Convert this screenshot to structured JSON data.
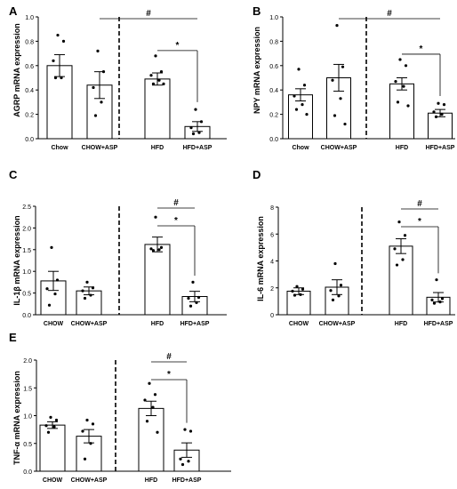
{
  "chart_data": [
    {
      "type": "bar",
      "panel": "A",
      "ylabel": "AGRP mRNA expression",
      "categories": [
        "Chow",
        "CHOW+ASP",
        "HFD",
        "HFD+ASP"
      ],
      "values": [
        0.6,
        0.44,
        0.49,
        0.1
      ],
      "errors": [
        0.09,
        0.11,
        0.05,
        0.04
      ],
      "points": [
        [
          0.85,
          0.8,
          0.64,
          0.5,
          0.5
        ],
        [
          0.72,
          0.55,
          0.42,
          0.3,
          0.19
        ],
        [
          0.68,
          0.55,
          0.52,
          0.48,
          0.45,
          0.45
        ],
        [
          0.24,
          0.14,
          0.09,
          0.05,
          0.04
        ]
      ],
      "ylim": [
        0,
        1.0
      ],
      "yticks": [
        "0.0",
        "0.2",
        "0.4",
        "0.6",
        "0.8",
        "1.0"
      ],
      "significance": [
        {
          "label": "#",
          "from": 1,
          "to": 3
        },
        {
          "label": "*",
          "from": 2,
          "to": 3
        }
      ]
    },
    {
      "type": "bar",
      "panel": "B",
      "ylabel": "NPY mRNA expression",
      "categories": [
        "Chow",
        "CHOW+ASP",
        "HFD",
        "HFD+ASP"
      ],
      "values": [
        0.36,
        0.5,
        0.45,
        0.21
      ],
      "errors": [
        0.05,
        0.11,
        0.05,
        0.03
      ],
      "points": [
        [
          0.57,
          0.44,
          0.35,
          0.28,
          0.24,
          0.2
        ],
        [
          0.93,
          0.59,
          0.48,
          0.33,
          0.19,
          0.12
        ],
        [
          0.65,
          0.6,
          0.47,
          0.43,
          0.3,
          0.27
        ],
        [
          0.29,
          0.28,
          0.22,
          0.2,
          0.18
        ]
      ],
      "ylim": [
        0,
        1.0
      ],
      "yticks": [
        "0.0",
        "0.2",
        "0.4",
        "0.6",
        "0.8",
        "1.0"
      ],
      "significance": [
        {
          "label": "#",
          "from": 1,
          "to": 3
        },
        {
          "label": "*",
          "from": 2,
          "to": 3
        }
      ]
    },
    {
      "type": "bar",
      "panel": "C",
      "ylabel": "IL-1β mRNA expression",
      "categories": [
        "CHOW",
        "CHOW+ASP",
        "HFD",
        "HFD+ASP"
      ],
      "values": [
        0.78,
        0.55,
        1.62,
        0.42
      ],
      "errors": [
        0.22,
        0.09,
        0.17,
        0.12
      ],
      "points": [
        [
          1.55,
          0.8,
          0.6,
          0.48,
          0.22
        ],
        [
          0.75,
          0.62,
          0.55,
          0.45,
          0.38
        ],
        [
          2.25,
          1.55,
          1.52,
          1.5,
          1.48
        ],
        [
          0.75,
          0.4,
          0.38,
          0.28,
          0.2
        ]
      ],
      "ylim": [
        0,
        2.5
      ],
      "yticks": [
        "0.0",
        "0.5",
        "1.0",
        "1.5",
        "2.0",
        "2.5"
      ],
      "significance": [
        {
          "label": "#",
          "from": 2,
          "to": 3
        },
        {
          "label": "*",
          "from": 2,
          "to": 3
        }
      ]
    },
    {
      "type": "bar",
      "panel": "D",
      "ylabel": "IL-6 mRNA expression",
      "categories": [
        "CHOW",
        "CHOW+ASP",
        "HFD",
        "HFD+ASP"
      ],
      "values": [
        1.75,
        2.05,
        5.1,
        1.3
      ],
      "errors": [
        0.25,
        0.55,
        0.55,
        0.35
      ],
      "points": [
        [
          2.1,
          1.9,
          1.75,
          1.5,
          1.45
        ],
        [
          3.8,
          2.2,
          1.8,
          1.4,
          1.1
        ],
        [
          6.9,
          5.9,
          4.9,
          4.1,
          3.7
        ],
        [
          2.6,
          1.2,
          1.1,
          0.95,
          0.85
        ]
      ],
      "ylim": [
        0,
        8
      ],
      "yticks": [
        "0",
        "2",
        "4",
        "6",
        "8"
      ],
      "significance": [
        {
          "label": "#",
          "from": 2,
          "to": 3
        },
        {
          "label": "*",
          "from": 2,
          "to": 3
        }
      ]
    },
    {
      "type": "bar",
      "panel": "E",
      "ylabel": "TNF-α mRNA expression",
      "categories": [
        "CHOW",
        "CHOW+ASP",
        "HFD",
        "HFD+ASP"
      ],
      "values": [
        0.83,
        0.63,
        1.13,
        0.38
      ],
      "errors": [
        0.06,
        0.12,
        0.13,
        0.13
      ],
      "points": [
        [
          0.97,
          0.92,
          0.82,
          0.8,
          0.7
        ],
        [
          0.92,
          0.85,
          0.72,
          0.5,
          0.22
        ],
        [
          1.58,
          1.38,
          1.28,
          1.15,
          0.9,
          0.7
        ],
        [
          0.75,
          0.72,
          0.22,
          0.18,
          0.12
        ]
      ],
      "ylim": [
        0,
        2.0
      ],
      "yticks": [
        "0.0",
        "0.5",
        "1.0",
        "1.5",
        "2.0"
      ],
      "significance": [
        {
          "label": "#",
          "from": 2,
          "to": 3
        },
        {
          "label": "*",
          "from": 2,
          "to": 3
        }
      ]
    }
  ]
}
